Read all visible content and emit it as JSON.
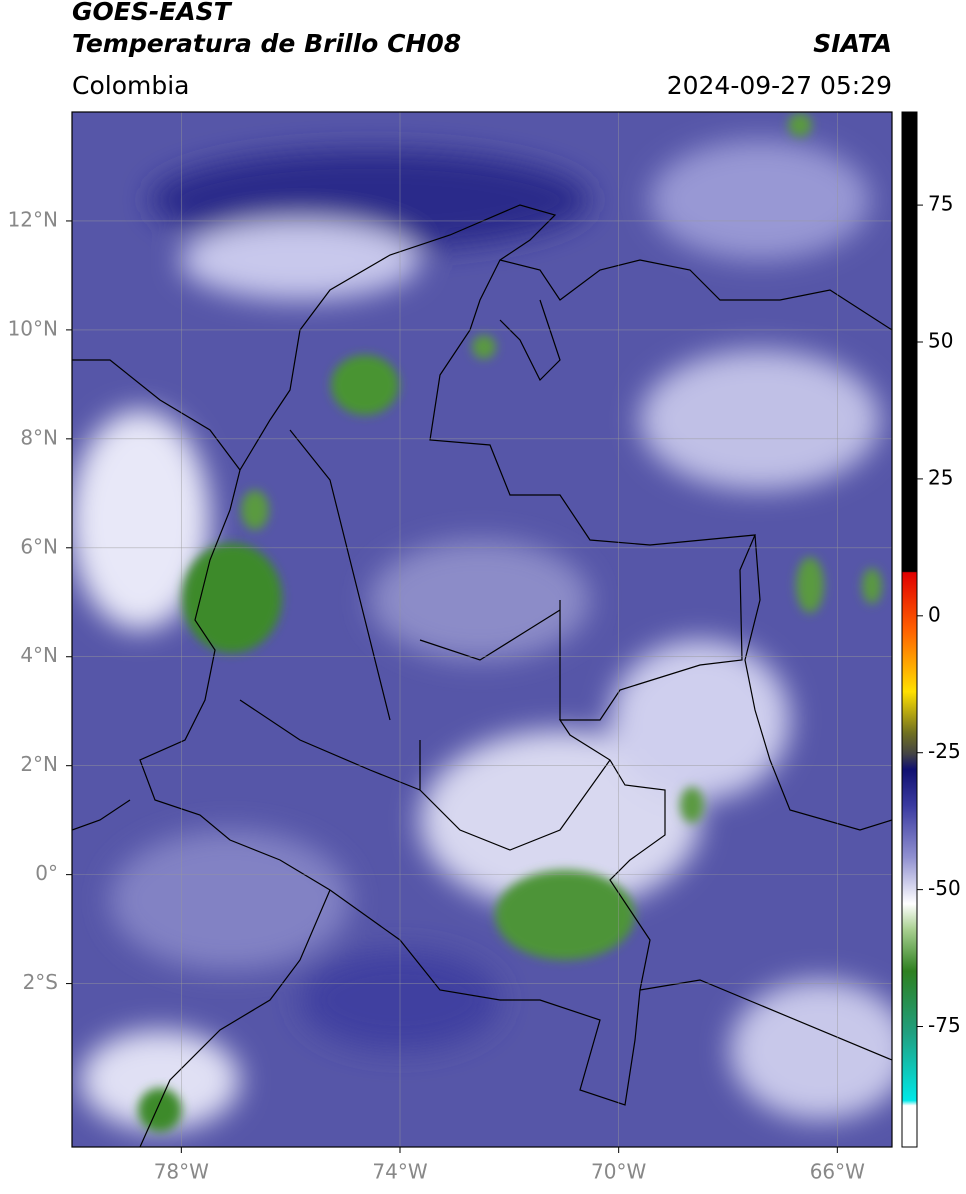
{
  "header": {
    "title": "GOES-EAST",
    "subtitle": "Temperatura de Brillo CH08",
    "source": "SIATA",
    "region": "Colombia",
    "timestamp": "2024-09-27 05:29"
  },
  "map": {
    "xlim": [
      -80,
      -65
    ],
    "ylim": [
      -5,
      14
    ],
    "xticks": [
      {
        "value": -78,
        "label": "78°W"
      },
      {
        "value": -74,
        "label": "74°W"
      },
      {
        "value": -70,
        "label": "70°W"
      },
      {
        "value": -66,
        "label": "66°W"
      }
    ],
    "yticks": [
      {
        "value": 12,
        "label": "12°N"
      },
      {
        "value": 10,
        "label": "10°N"
      },
      {
        "value": 8,
        "label": "8°N"
      },
      {
        "value": 6,
        "label": "6°N"
      },
      {
        "value": 4,
        "label": "4°N"
      },
      {
        "value": 2,
        "label": "2°N"
      },
      {
        "value": 0,
        "label": "0°"
      },
      {
        "value": -2,
        "label": "2°S"
      }
    ],
    "grid": true
  },
  "colorbar": {
    "lim": [
      -97,
      92
    ],
    "ticks": [
      -75,
      -50,
      -25,
      0,
      25,
      50,
      75
    ]
  }
}
